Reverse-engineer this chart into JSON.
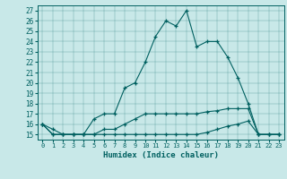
{
  "xlabel": "Humidex (Indice chaleur)",
  "x_values": [
    0,
    1,
    2,
    3,
    4,
    5,
    6,
    7,
    8,
    9,
    10,
    11,
    12,
    13,
    14,
    15,
    16,
    17,
    18,
    19,
    20,
    21,
    22,
    23
  ],
  "line1": [
    16,
    15.5,
    15,
    15,
    15,
    16.5,
    17,
    17,
    19.5,
    20,
    22,
    24.5,
    26,
    25.5,
    27,
    23.5,
    24,
    24,
    22.5,
    20.5,
    18,
    15,
    15,
    15
  ],
  "line2": [
    16,
    15,
    15,
    15,
    15,
    15,
    15.5,
    15.5,
    16,
    16.5,
    17,
    17,
    17,
    17,
    17,
    17,
    17.2,
    17.3,
    17.5,
    17.5,
    17.5,
    15,
    15,
    15
  ],
  "line3": [
    16,
    15,
    15,
    15,
    15,
    15,
    15,
    15,
    15,
    15,
    15,
    15,
    15,
    15,
    15,
    15,
    15.2,
    15.5,
    15.8,
    16,
    16.3,
    15,
    15,
    15
  ],
  "bg_color": "#c8e8e8",
  "line_color": "#006060",
  "ylim": [
    14.5,
    27.5
  ],
  "xlim": [
    -0.5,
    23.5
  ],
  "yticks": [
    15,
    16,
    17,
    18,
    19,
    20,
    21,
    22,
    23,
    24,
    25,
    26,
    27
  ],
  "xticks": [
    0,
    1,
    2,
    3,
    4,
    5,
    6,
    7,
    8,
    9,
    10,
    11,
    12,
    13,
    14,
    15,
    16,
    17,
    18,
    19,
    20,
    21,
    22,
    23
  ]
}
